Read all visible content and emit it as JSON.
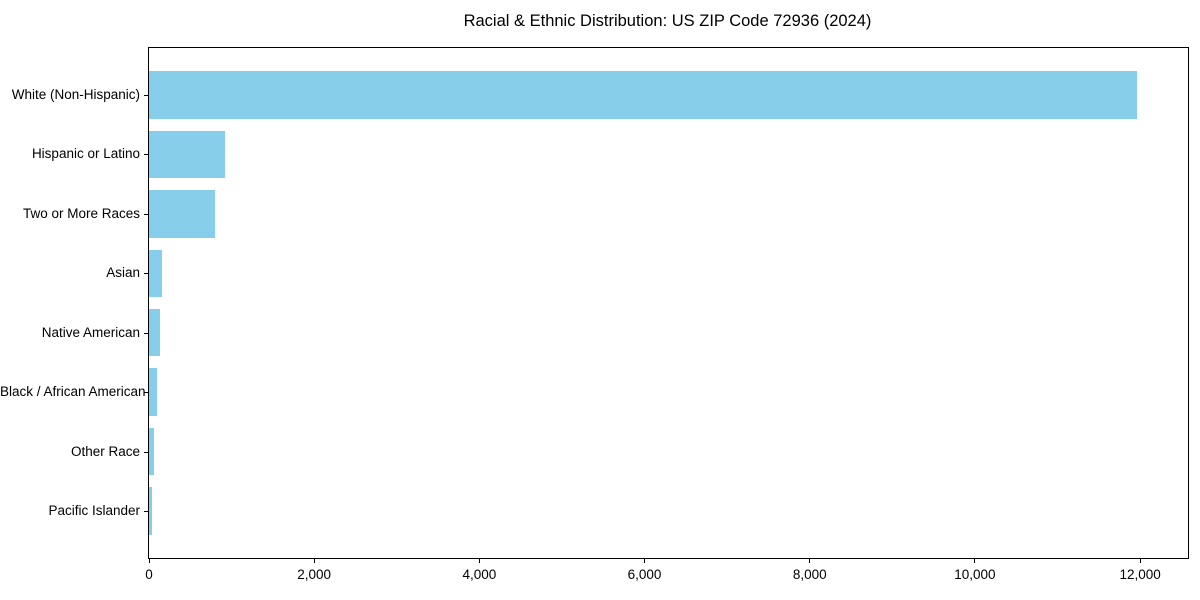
{
  "page": {
    "background_color": "#ffffff",
    "text_color": "#000000"
  },
  "chart_data": {
    "type": "bar",
    "orientation": "horizontal",
    "title": "Racial & Ethnic Distribution: US ZIP Code 72936 (2024)",
    "categories": [
      "White (Non-Hispanic)",
      "Hispanic or Latino",
      "Two or More Races",
      "Asian",
      "Native American",
      "Black / African American",
      "Other Race",
      "Pacific Islander"
    ],
    "values": [
      11960,
      920,
      800,
      155,
      130,
      95,
      60,
      35
    ],
    "xlabel": "",
    "ylabel": "",
    "xlim": [
      0,
      12580
    ],
    "x_ticks": [
      0,
      2000,
      4000,
      6000,
      8000,
      10000,
      12000
    ],
    "x_tick_labels": [
      "0",
      "2,000",
      "4,000",
      "6,000",
      "8,000",
      "10,000",
      "12,000"
    ],
    "bar_color": "#87CEEB",
    "axis_color": "#000000",
    "grid": false,
    "legend_position": "none"
  }
}
